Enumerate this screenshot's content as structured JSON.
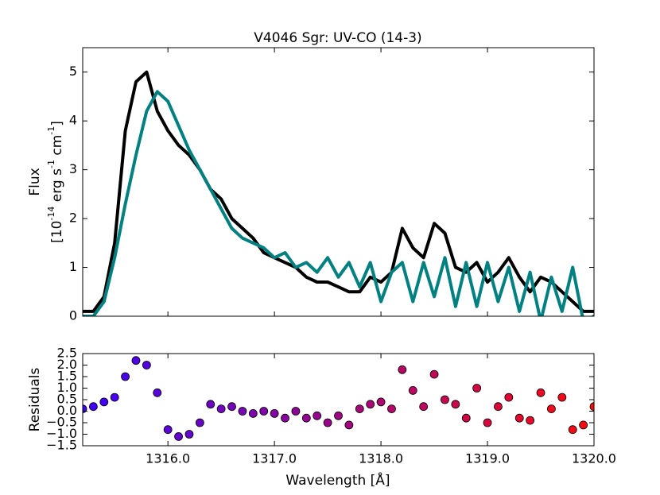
{
  "chart_data": [
    {
      "type": "line",
      "title": "V4046 Sgr: UV-CO (14-3)",
      "ylabel": "Flux",
      "ylabel_units": [
        "[10",
        "-14",
        " erg s",
        "-1",
        " cm",
        "-1",
        "]"
      ],
      "x": [
        1315.2,
        1315.3,
        1315.4,
        1315.5,
        1315.6,
        1315.7,
        1315.8,
        1315.9,
        1316.0,
        1316.1,
        1316.2,
        1316.3,
        1316.4,
        1316.5,
        1316.6,
        1316.7,
        1316.8,
        1316.9,
        1317.0,
        1317.1,
        1317.2,
        1317.3,
        1317.4,
        1317.5,
        1317.6,
        1317.7,
        1317.8,
        1317.9,
        1318.0,
        1318.1,
        1318.2,
        1318.3,
        1318.4,
        1318.5,
        1318.6,
        1318.7,
        1318.8,
        1318.9,
        1319.0,
        1319.1,
        1319.2,
        1319.3,
        1319.4,
        1319.5,
        1319.6,
        1319.7,
        1319.8,
        1319.9,
        1320.0
      ],
      "series": [
        {
          "color": "#000000",
          "values": [
            0.1,
            0.1,
            0.4,
            1.5,
            3.8,
            4.8,
            5.0,
            4.2,
            3.8,
            3.5,
            3.3,
            3.0,
            2.6,
            2.4,
            2.0,
            1.8,
            1.6,
            1.3,
            1.2,
            1.1,
            1.0,
            0.8,
            0.7,
            0.7,
            0.6,
            0.5,
            0.5,
            0.8,
            0.7,
            0.9,
            1.8,
            1.4,
            1.2,
            1.9,
            1.7,
            1.0,
            0.9,
            1.1,
            0.7,
            0.9,
            1.2,
            0.8,
            0.5,
            0.8,
            0.7,
            0.5,
            0.3,
            0.1,
            0.1
          ]
        },
        {
          "color": "#008080",
          "values": [
            0,
            0,
            0.3,
            1.2,
            2.3,
            3.3,
            4.2,
            4.6,
            4.4,
            3.9,
            3.4,
            3.0,
            2.6,
            2.2,
            1.8,
            1.6,
            1.5,
            1.4,
            1.2,
            1.3,
            1.0,
            1.1,
            0.9,
            1.2,
            0.8,
            1.1,
            0.6,
            1.1,
            0.3,
            0.9,
            1.1,
            0.3,
            1.1,
            0.4,
            1.2,
            0.2,
            1.1,
            0.2,
            1.1,
            0.3,
            1.0,
            0.1,
            0.9,
            -0.1,
            0.8,
            0.1,
            1.0,
            -0.1,
            0
          ]
        }
      ],
      "xlim": [
        1315.2,
        1320.0
      ],
      "xticks": [
        1316,
        1317,
        1318,
        1319,
        1320
      ],
      "ylim": [
        0,
        5.5
      ],
      "yticks": [
        0,
        1,
        2,
        3,
        4,
        5
      ]
    },
    {
      "type": "scatter",
      "ylabel": "Residuals",
      "xlabel": "Wavelength [Å]",
      "x": [
        1315.2,
        1315.3,
        1315.4,
        1315.5,
        1315.6,
        1315.7,
        1315.8,
        1315.9,
        1316.0,
        1316.1,
        1316.2,
        1316.3,
        1316.4,
        1316.5,
        1316.6,
        1316.7,
        1316.8,
        1316.9,
        1317.0,
        1317.1,
        1317.2,
        1317.3,
        1317.4,
        1317.5,
        1317.6,
        1317.7,
        1317.8,
        1317.9,
        1318.0,
        1318.1,
        1318.2,
        1318.3,
        1318.4,
        1318.5,
        1318.6,
        1318.7,
        1318.8,
        1318.9,
        1319.0,
        1319.1,
        1319.2,
        1319.3,
        1319.4,
        1319.5,
        1319.6,
        1319.7,
        1319.8,
        1319.9,
        1320.0
      ],
      "values": [
        0.1,
        0.2,
        0.4,
        0.6,
        1.5,
        2.2,
        2.0,
        0.8,
        -0.8,
        -1.1,
        -1.0,
        -0.5,
        0.3,
        0.1,
        0.2,
        0.0,
        -0.1,
        0.0,
        -0.1,
        -0.3,
        0.0,
        -0.3,
        -0.2,
        -0.5,
        -0.2,
        -0.6,
        0.1,
        0.3,
        0.4,
        0.1,
        1.8,
        0.9,
        0.2,
        1.6,
        0.5,
        0.3,
        -0.3,
        1.0,
        -0.5,
        0.2,
        0.6,
        -0.3,
        -0.4,
        0.8,
        0.1,
        0.6,
        -0.8,
        -0.6,
        0.2
      ],
      "color_range": [
        "#3c00ff",
        "#ff0a0a"
      ],
      "xlim": [
        1315.2,
        1320.0
      ],
      "xticks": [
        {
          "value": 1316,
          "label": "1316.0"
        },
        {
          "value": 1317,
          "label": "1317.0"
        },
        {
          "value": 1318,
          "label": "1318.0"
        },
        {
          "value": 1319,
          "label": "1319.0"
        },
        {
          "value": 1320,
          "label": "1320.0"
        }
      ],
      "ylim": [
        -1.5,
        2.5
      ],
      "yticks": [
        {
          "value": -1.5,
          "label": "−1.5"
        },
        {
          "value": -1,
          "label": "−1.0"
        },
        {
          "value": -0.5,
          "label": "−0.5"
        },
        {
          "value": 0,
          "label": "0.0"
        },
        {
          "value": 0.5,
          "label": "0.5"
        },
        {
          "value": 1,
          "label": "1.0"
        },
        {
          "value": 1.5,
          "label": "1.5"
        },
        {
          "value": 2,
          "label": "2.0"
        },
        {
          "value": 2.5,
          "label": "2.5"
        }
      ]
    }
  ]
}
